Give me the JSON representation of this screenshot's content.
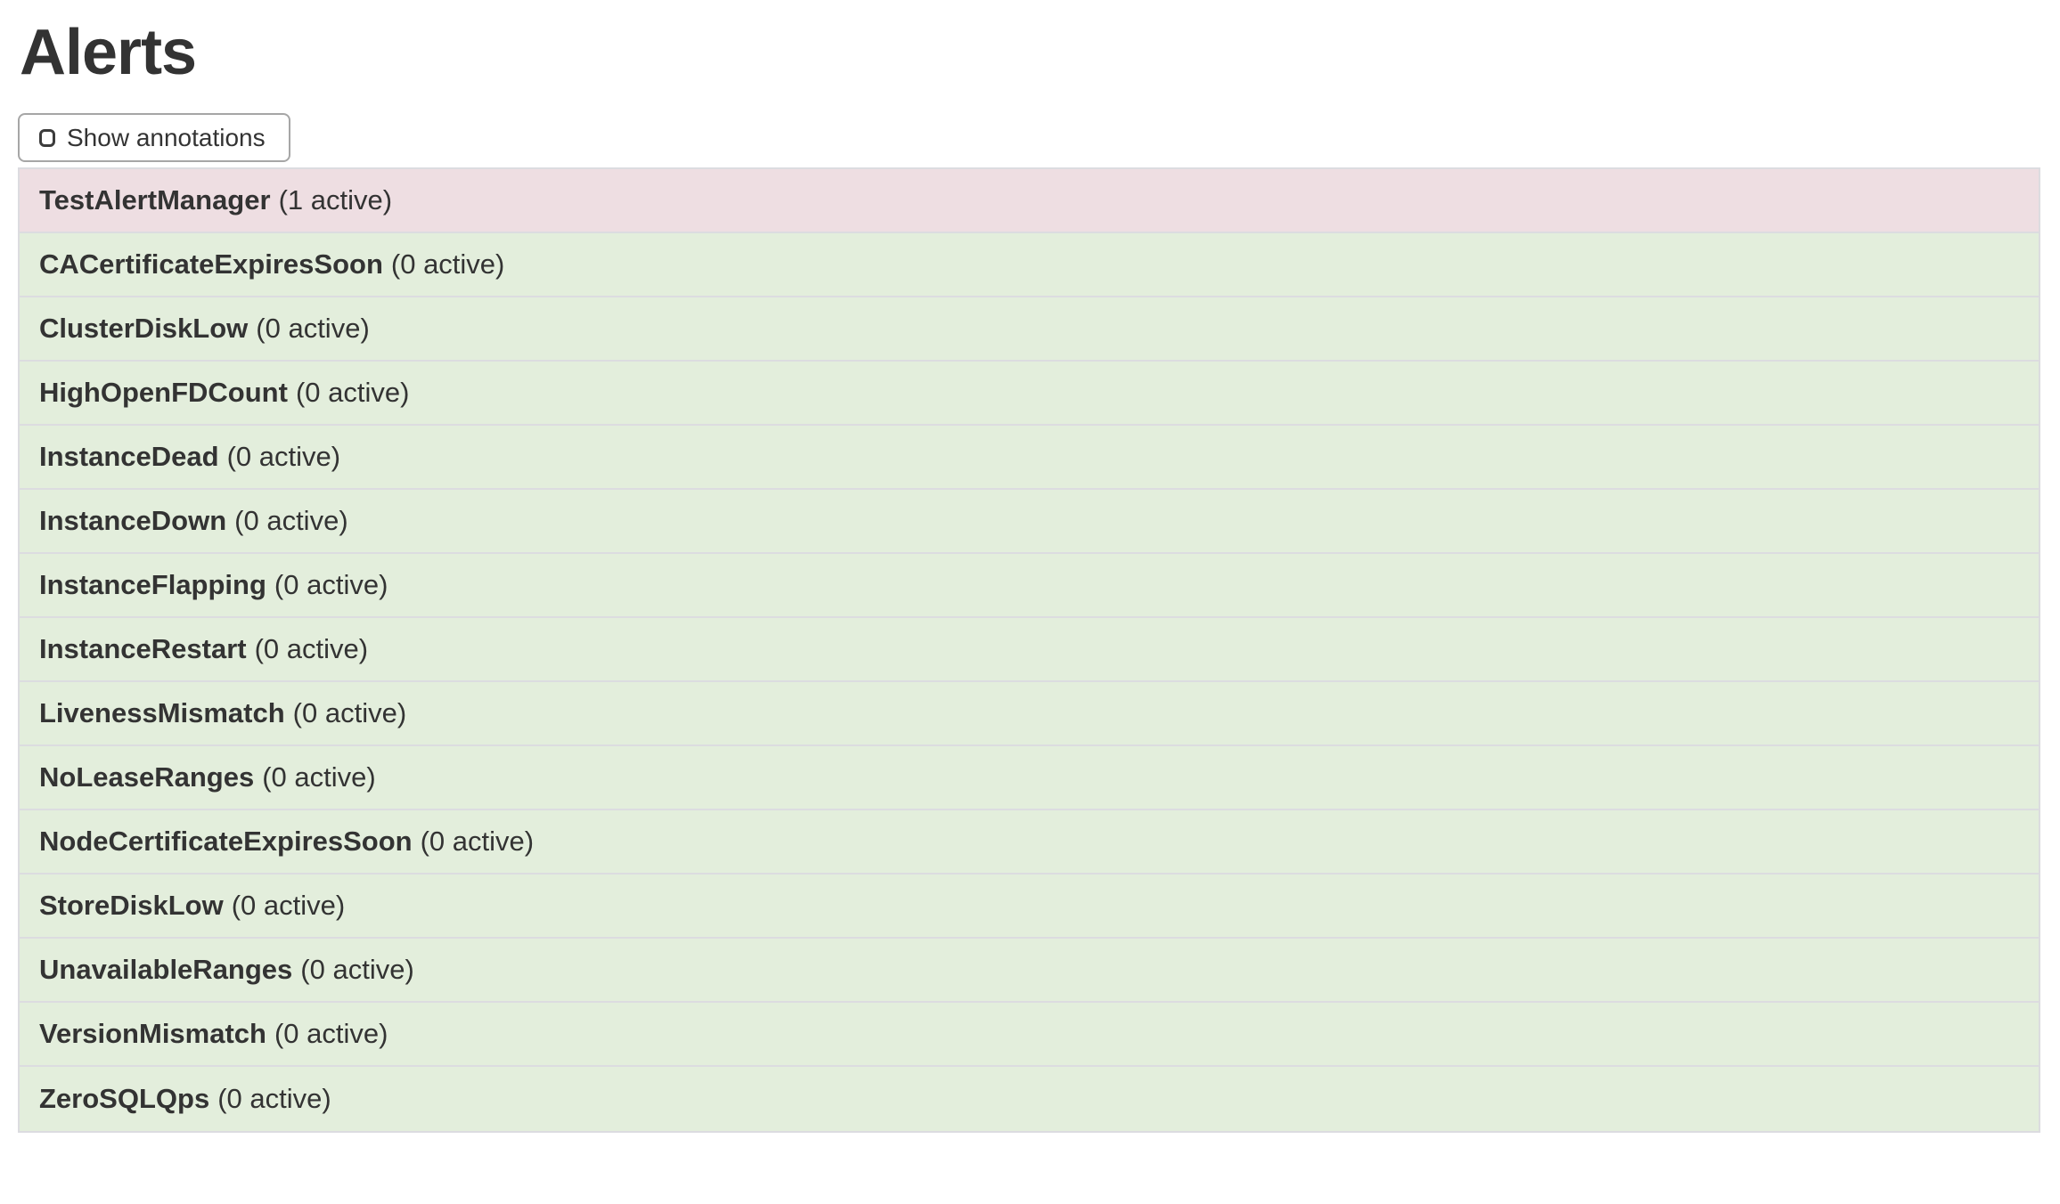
{
  "page": {
    "title": "Alerts"
  },
  "toolbar": {
    "show_annotations_label": "Show annotations",
    "checkbox_checked": false
  },
  "alerts": [
    {
      "name": "TestAlertManager",
      "active": 1,
      "active_label": "(1 active)",
      "state": "firing"
    },
    {
      "name": "CACertificateExpiresSoon",
      "active": 0,
      "active_label": "(0 active)",
      "state": "inactive"
    },
    {
      "name": "ClusterDiskLow",
      "active": 0,
      "active_label": "(0 active)",
      "state": "inactive"
    },
    {
      "name": "HighOpenFDCount",
      "active": 0,
      "active_label": "(0 active)",
      "state": "inactive"
    },
    {
      "name": "InstanceDead",
      "active": 0,
      "active_label": "(0 active)",
      "state": "inactive"
    },
    {
      "name": "InstanceDown",
      "active": 0,
      "active_label": "(0 active)",
      "state": "inactive"
    },
    {
      "name": "InstanceFlapping",
      "active": 0,
      "active_label": "(0 active)",
      "state": "inactive"
    },
    {
      "name": "InstanceRestart",
      "active": 0,
      "active_label": "(0 active)",
      "state": "inactive"
    },
    {
      "name": "LivenessMismatch",
      "active": 0,
      "active_label": "(0 active)",
      "state": "inactive"
    },
    {
      "name": "NoLeaseRanges",
      "active": 0,
      "active_label": "(0 active)",
      "state": "inactive"
    },
    {
      "name": "NodeCertificateExpiresSoon",
      "active": 0,
      "active_label": "(0 active)",
      "state": "inactive"
    },
    {
      "name": "StoreDiskLow",
      "active": 0,
      "active_label": "(0 active)",
      "state": "inactive"
    },
    {
      "name": "UnavailableRanges",
      "active": 0,
      "active_label": "(0 active)",
      "state": "inactive"
    },
    {
      "name": "VersionMismatch",
      "active": 0,
      "active_label": "(0 active)",
      "state": "inactive"
    },
    {
      "name": "ZeroSQLQps",
      "active": 0,
      "active_label": "(0 active)",
      "state": "inactive"
    }
  ],
  "colors": {
    "firing_bg": "#eedee2",
    "inactive_bg": "#e3eedc",
    "table_border": "#dcdce0",
    "button_border": "#a6a6a6",
    "text": "#333333"
  }
}
